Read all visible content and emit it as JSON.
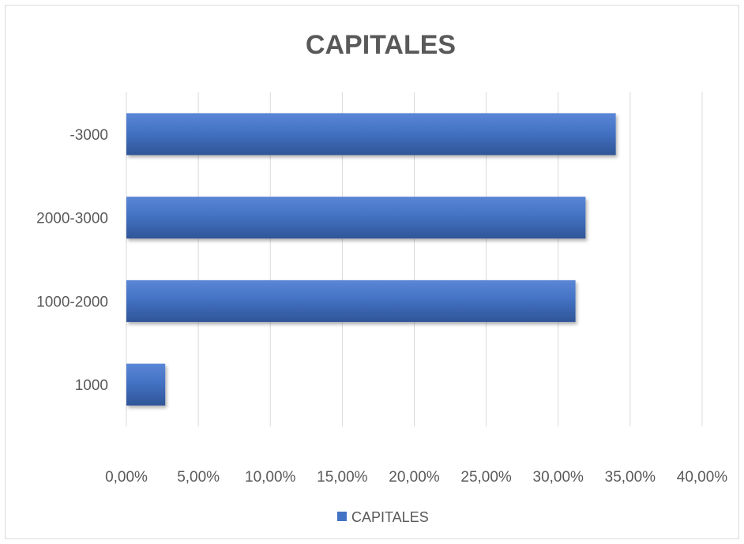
{
  "chart_data": {
    "type": "bar",
    "orientation": "horizontal",
    "title": "CAPITALES",
    "categories": [
      "1000",
      "1000-2000",
      "2000-3000",
      "-3000"
    ],
    "series": [
      {
        "name": "CAPITALES",
        "values": [
          0.027,
          0.312,
          0.319,
          0.34
        ],
        "color": "#4472c4"
      }
    ],
    "xlim": [
      0,
      0.4
    ],
    "x_ticks": [
      0,
      0.05,
      0.1,
      0.15,
      0.2,
      0.25,
      0.3,
      0.35,
      0.4
    ],
    "x_tick_labels": [
      "0,00%",
      "5,00%",
      "10,00%",
      "15,00%",
      "20,00%",
      "25,00%",
      "30,00%",
      "35,00%",
      "40,00%"
    ],
    "grid": true,
    "legend": "bottom",
    "xlabel": "",
    "ylabel": ""
  },
  "colors": {
    "bar": "#4472c4",
    "bar_light": "#5b86d6",
    "bar_dark": "#2f5597",
    "grid": "#d9d9d9",
    "text": "#595959"
  }
}
